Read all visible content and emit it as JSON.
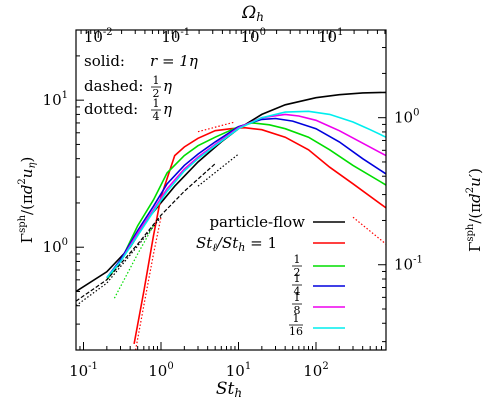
{
  "chart_data": {
    "type": "line",
    "xscale": "log",
    "yscale": "log",
    "xlabel": "St_h",
    "ylabel_left": "Γ^sph/(πd²u_η)",
    "ylabel_right": "Γ^sph/(πd²u')",
    "xlabel_top": "Ω_h",
    "xlim": [
      0.08,
      800
    ],
    "ylim": [
      0.2,
      30
    ],
    "grid": false,
    "legend_placement": "lower-center",
    "x_ticks": [
      {
        "value": 0.1,
        "base": "10",
        "exp": "-1"
      },
      {
        "value": 1,
        "base": "10",
        "exp": "0"
      },
      {
        "value": 10,
        "base": "10",
        "exp": "1"
      },
      {
        "value": 100,
        "base": "10",
        "exp": "2"
      }
    ],
    "x_top_ticks": [
      {
        "value": 0.01,
        "base": "10",
        "exp": "-2"
      },
      {
        "value": 0.1,
        "base": "10",
        "exp": "-1"
      },
      {
        "value": 1,
        "base": "10",
        "exp": "0"
      },
      {
        "value": 10,
        "base": "10",
        "exp": "1"
      }
    ],
    "y_ticks": [
      {
        "value": 1,
        "base": "10",
        "exp": "0"
      },
      {
        "value": 10,
        "base": "10",
        "exp": "1"
      }
    ],
    "y_right_ticks": [
      {
        "value": 0.1,
        "base": "10",
        "exp": "-1"
      },
      {
        "value": 1,
        "base": "10",
        "exp": "0"
      }
    ],
    "annotation": {
      "line1_key": "solid:",
      "line1_val": "r = 1η",
      "line2_key": "dashed:",
      "line2_num": "1",
      "line2_den": "2",
      "line2_sym": "η",
      "line3_key": "dotted:",
      "line3_num": "1",
      "line3_den": "4",
      "line3_sym": "η"
    },
    "legend": [
      {
        "label": "particle-flow",
        "type": "text",
        "color": "#000000"
      },
      {
        "label": "St_ℓ/St_h = 1",
        "type": "ratio",
        "color": "#ff0000"
      },
      {
        "num": "1",
        "den": "2",
        "type": "frac",
        "color": "#00dd00"
      },
      {
        "num": "1",
        "den": "4",
        "type": "frac",
        "color": "#0000dd"
      },
      {
        "num": "1",
        "den": "8",
        "type": "frac",
        "color": "#ee00ee"
      },
      {
        "num": "1",
        "den": "16",
        "type": "frac",
        "color": "#00eeee"
      }
    ],
    "series": [
      {
        "style": "solid",
        "color": "#000000",
        "x": [
          0.08,
          0.2,
          0.4,
          0.7,
          1.5,
          3,
          6,
          10,
          20,
          40,
          100,
          200,
          400,
          800
        ],
        "y": [
          0.5,
          0.68,
          1.0,
          1.6,
          2.6,
          3.8,
          5.2,
          6.4,
          8.0,
          9.3,
          10.4,
          10.9,
          11.2,
          11.3
        ]
      },
      {
        "style": "solid",
        "color": "#ff0000",
        "x": [
          0.45,
          0.6,
          0.8,
          1.0,
          1.5,
          2,
          3,
          5,
          8,
          12,
          20,
          40,
          80,
          150,
          300,
          800
        ],
        "y": [
          0.22,
          0.5,
          1.2,
          2.2,
          4.2,
          4.8,
          5.5,
          6.2,
          6.4,
          6.5,
          6.3,
          5.6,
          4.6,
          3.5,
          2.7,
          1.85
        ]
      },
      {
        "style": "solid",
        "color": "#00dd00",
        "x": [
          0.2,
          0.3,
          0.5,
          0.8,
          1.2,
          2,
          3,
          5,
          10,
          15,
          25,
          40,
          80,
          150,
          300,
          800
        ],
        "y": [
          0.6,
          0.8,
          1.4,
          2.1,
          3.2,
          4.2,
          4.9,
          5.6,
          6.6,
          7.0,
          6.8,
          6.4,
          5.6,
          4.6,
          3.6,
          2.65
        ]
      },
      {
        "style": "solid",
        "color": "#0000dd",
        "x": [
          0.2,
          0.3,
          0.5,
          0.8,
          1.2,
          2,
          3,
          5,
          10,
          20,
          30,
          50,
          100,
          200,
          400,
          800
        ],
        "y": [
          0.62,
          0.82,
          1.3,
          1.9,
          2.7,
          3.6,
          4.3,
          5.2,
          6.6,
          7.4,
          7.5,
          7.2,
          6.4,
          5.2,
          4.0,
          3.15
        ]
      },
      {
        "style": "solid",
        "color": "#ee00ee",
        "x": [
          0.2,
          0.3,
          0.5,
          0.8,
          1.2,
          2,
          3,
          5,
          10,
          20,
          40,
          60,
          100,
          200,
          400,
          800
        ],
        "y": [
          0.62,
          0.8,
          1.25,
          1.8,
          2.5,
          3.4,
          4.1,
          5.0,
          6.5,
          7.6,
          8.0,
          7.8,
          7.3,
          6.2,
          5.1,
          4.2
        ]
      },
      {
        "style": "solid",
        "color": "#00eeee",
        "x": [
          0.2,
          0.3,
          0.5,
          0.8,
          1.2,
          2,
          3,
          5,
          10,
          20,
          40,
          80,
          150,
          300,
          500,
          800
        ],
        "y": [
          0.62,
          0.8,
          1.2,
          1.75,
          2.4,
          3.3,
          4.0,
          4.9,
          6.4,
          7.6,
          8.3,
          8.4,
          8.0,
          7.1,
          6.3,
          5.6
        ]
      },
      {
        "style": "dashed",
        "color": "#000000",
        "x": [
          0.08,
          0.2,
          0.5,
          1,
          2,
          5
        ],
        "y": [
          0.43,
          0.6,
          1.05,
          1.65,
          2.4,
          3.7
        ]
      },
      {
        "style": "dotted",
        "color": "#000000",
        "x": [
          0.08,
          0.2,
          0.5,
          1
        ],
        "y": [
          0.4,
          0.57,
          1.02,
          1.6
        ]
      },
      {
        "style": "dotted",
        "color": "#000000",
        "x": [
          3,
          10
        ],
        "y": [
          2.6,
          4.3
        ]
      },
      {
        "style": "dotted",
        "color": "#00dd00",
        "x": [
          0.25,
          0.5,
          0.8
        ],
        "y": [
          0.45,
          0.9,
          1.4
        ]
      },
      {
        "style": "dotted",
        "color": "#ff0000",
        "x": [
          0.47,
          0.6,
          0.8,
          1.0
        ],
        "y": [
          0.2,
          0.4,
          0.9,
          1.6
        ]
      },
      {
        "style": "dotted",
        "color": "#ff0000",
        "x": [
          3,
          9
        ],
        "y": [
          6.1,
          7.1
        ]
      },
      {
        "style": "dotted",
        "color": "#ff0000",
        "x": [
          300,
          800
        ],
        "y": [
          1.6,
          1.05
        ]
      }
    ]
  }
}
